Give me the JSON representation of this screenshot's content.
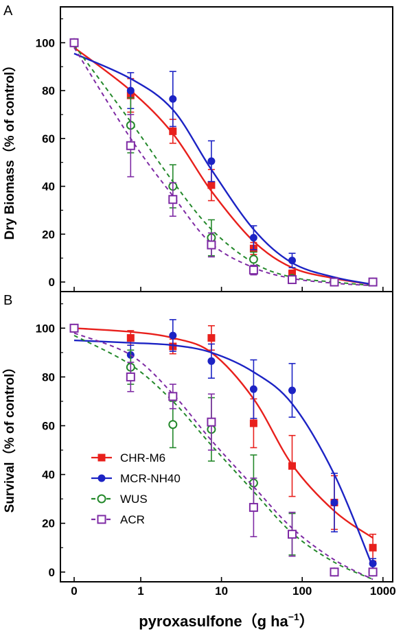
{
  "chart_data": {
    "type": "scatter",
    "x_label": "pyroxasulfone",
    "x_unit_base": "g ha",
    "x_unit_exp": "−1",
    "x_scale": "log",
    "x_ticks": [
      "0",
      "1",
      "10",
      "100",
      "1000"
    ],
    "y_ticks": [
      "0",
      "20",
      "40",
      "60",
      "80",
      "100"
    ],
    "ylim": [
      -4,
      115
    ],
    "colors": {
      "CHR-M6": "#e8201c",
      "MCR-NH40": "#1c23c4",
      "WUS": "#23882a",
      "ACR": "#7e2aa4"
    },
    "legend": {
      "position": "bottom-left of panel B",
      "entries": [
        "CHR-M6",
        "MCR-NH40",
        "WUS",
        "ACR"
      ]
    },
    "panels": [
      {
        "label": "A",
        "y_label": "Dry Biomass（% of control）",
        "series": [
          {
            "name": "CHR-M6",
            "marker": "filled-square",
            "line": "solid",
            "x": [
              0,
              0.75,
              2.5,
              7.5,
              25,
              75,
              250,
              750
            ],
            "y": [
              100,
              78,
              63,
              40.5,
              14,
              3.5,
              0.5,
              0
            ],
            "err": [
              0,
              7,
              5,
              6.5,
              2.5,
              1.5,
              0.5,
              0.5
            ],
            "fit_x": [
              0,
              0.75,
              2.5,
              7.5,
              25,
              75,
              250,
              750
            ],
            "fit_y": [
              98,
              80,
              62,
              38,
              17,
              6,
              1.5,
              -1
            ]
          },
          {
            "name": "MCR-NH40",
            "marker": "filled-circle",
            "line": "solid",
            "x": [
              0,
              0.75,
              2.5,
              7.5,
              25,
              75,
              250,
              750
            ],
            "y": [
              100,
              80,
              76.5,
              50.5,
              18.5,
              9,
              0.5,
              0
            ],
            "err": [
              0,
              7.5,
              11.5,
              8.5,
              5,
              3,
              0.5,
              0.5
            ],
            "fit_x": [
              0,
              0.75,
              2.5,
              7.5,
              25,
              75,
              250,
              750
            ],
            "fit_y": [
              95.5,
              85,
              72,
              47,
              22,
              8,
              2,
              -1
            ]
          },
          {
            "name": "WUS",
            "marker": "open-circle",
            "line": "dashed",
            "x": [
              0,
              0.75,
              2.5,
              7.5,
              25,
              75,
              250,
              750
            ],
            "y": [
              100,
              65.5,
              40,
              18.5,
              9.5,
              1.5,
              0,
              0
            ],
            "err": [
              0,
              11.5,
              9,
              7.5,
              3,
              1,
              0.5,
              0.5
            ],
            "fit_x": [
              0,
              0.75,
              2.5,
              7.5,
              25,
              75,
              250,
              750
            ],
            "fit_y": [
              99,
              67,
              42,
              22,
              8,
              2,
              0,
              -1.5
            ]
          },
          {
            "name": "ACR",
            "marker": "open-square",
            "line": "dashed",
            "x": [
              0,
              0.75,
              2.5,
              7.5,
              25,
              75,
              250,
              750
            ],
            "y": [
              100,
              57,
              34.5,
              15.5,
              5,
              1,
              0,
              0
            ],
            "err": [
              0,
              13,
              7,
              5,
              2,
              1,
              0.5,
              0.5
            ],
            "fit_x": [
              0,
              0.75,
              2.5,
              7.5,
              25,
              75,
              250,
              750
            ],
            "fit_y": [
              98,
              60,
              36,
              16,
              6,
              1.5,
              -0.5,
              -1.5
            ]
          }
        ]
      },
      {
        "label": "B",
        "y_label": "Survival（% of control）",
        "series": [
          {
            "name": "CHR-M6",
            "marker": "filled-square",
            "line": "solid",
            "x": [
              0,
              0.75,
              2.5,
              7.5,
              25,
              75,
              250,
              750
            ],
            "y": [
              100,
              96,
              92.5,
              96,
              61,
              43.5,
              28.5,
              10
            ],
            "err": [
              0,
              3,
              3,
              5,
              10,
              12.5,
              11,
              5.5
            ],
            "fit_x": [
              0,
              0.75,
              2.5,
              7.5,
              25,
              75,
              250,
              750
            ],
            "fit_y": [
              100,
              98.5,
              96,
              90,
              71,
              44,
              25,
              14
            ]
          },
          {
            "name": "MCR-NH40",
            "marker": "filled-circle",
            "line": "solid",
            "x": [
              0,
              0.75,
              2.5,
              7.5,
              25,
              75,
              250,
              750
            ],
            "y": [
              100,
              89,
              97,
              86.5,
              75,
              74.5,
              28.5,
              3.5
            ],
            "err": [
              0,
              4,
              6.5,
              7,
              12,
              11,
              12,
              2
            ],
            "fit_x": [
              0,
              0.75,
              2.5,
              7.5,
              25,
              75,
              250,
              750
            ],
            "fit_y": [
              95,
              94,
              93,
              90,
              82,
              69,
              40,
              2
            ]
          },
          {
            "name": "WUS",
            "marker": "open-circle",
            "line": "dashed",
            "x": [
              0,
              0.75,
              2.5,
              7.5,
              25,
              75,
              250,
              750
            ],
            "y": [
              100,
              84,
              60.5,
              58.5,
              36.5,
              15.5,
              0,
              0
            ],
            "err": [
              0,
              7,
              9.5,
              13,
              11.5,
              8.5,
              0.5,
              0.5
            ],
            "fit_x": [
              0,
              0.75,
              2.5,
              7.5,
              25,
              75,
              250,
              750
            ],
            "fit_y": [
              97,
              85,
              70,
              52,
              33,
              16,
              4,
              -3
            ]
          },
          {
            "name": "ACR",
            "marker": "open-square",
            "line": "dashed",
            "x": [
              0,
              0.75,
              2.5,
              7.5,
              25,
              75,
              250,
              750
            ],
            "y": [
              100,
              80,
              72,
              61.5,
              26.5,
              15.5,
              0,
              0
            ],
            "err": [
              0,
              6,
              5,
              11.5,
              12,
              9,
              0.5,
              0.5
            ],
            "fit_x": [
              0,
              0.75,
              2.5,
              7.5,
              25,
              75,
              250,
              750
            ],
            "fit_y": [
              98,
              89,
              73,
              54,
              35,
              18,
              5,
              -3
            ]
          }
        ]
      }
    ]
  }
}
